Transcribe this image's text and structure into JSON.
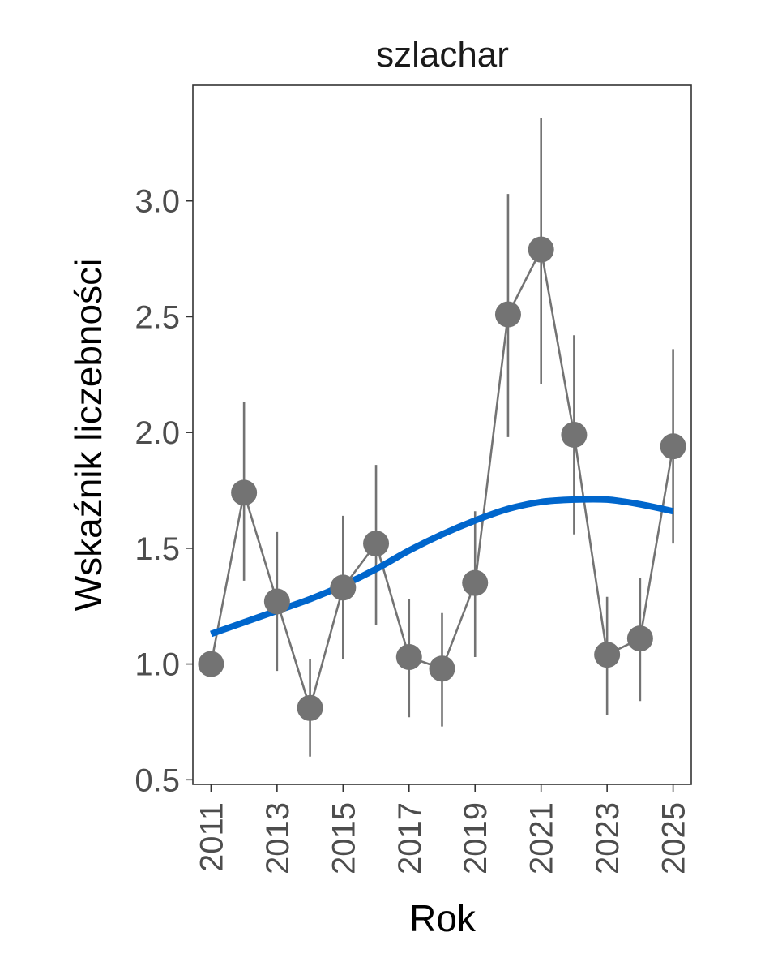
{
  "chart_data": {
    "type": "line",
    "title": "szlachar",
    "xlabel": "Rok",
    "ylabel": "Wskaźnik liczebności",
    "xlim": [
      2010.45,
      2025.55
    ],
    "ylim": [
      0.48,
      3.5
    ],
    "x_ticks": [
      2011,
      2013,
      2015,
      2017,
      2019,
      2021,
      2023,
      2025
    ],
    "x_tick_labels": [
      "2011",
      "2013",
      "2015",
      "2017",
      "2019",
      "2021",
      "2023",
      "2025"
    ],
    "y_ticks": [
      0.5,
      1.0,
      1.5,
      2.0,
      2.5,
      3.0
    ],
    "y_tick_labels": [
      "0.5",
      "1.0",
      "1.5",
      "2.0",
      "2.5",
      "3.0"
    ],
    "grid": false,
    "series": [
      {
        "kind": "points-with-errorbars",
        "color": "#737373",
        "x": [
          2011,
          2012,
          2013,
          2014,
          2015,
          2016,
          2017,
          2018,
          2019,
          2020,
          2021,
          2022,
          2023,
          2024,
          2025
        ],
        "y": [
          1.0,
          1.74,
          1.27,
          0.81,
          1.33,
          1.52,
          1.03,
          0.98,
          1.35,
          2.51,
          2.79,
          1.99,
          1.04,
          1.11,
          1.94
        ],
        "lower": [
          1.0,
          1.36,
          0.97,
          0.6,
          1.02,
          1.17,
          0.77,
          0.73,
          1.03,
          1.98,
          2.21,
          1.56,
          0.78,
          0.84,
          1.52
        ],
        "upper": [
          1.0,
          2.13,
          1.57,
          1.02,
          1.64,
          1.86,
          1.28,
          1.22,
          1.66,
          3.03,
          3.36,
          2.42,
          1.29,
          1.37,
          2.36
        ]
      },
      {
        "kind": "trend",
        "color": "#0066cc",
        "x": [
          2011,
          2012,
          2013,
          2014,
          2015,
          2016,
          2017,
          2018,
          2019,
          2020,
          2021,
          2022,
          2023,
          2024,
          2025
        ],
        "y": [
          1.13,
          1.18,
          1.23,
          1.28,
          1.34,
          1.41,
          1.49,
          1.56,
          1.62,
          1.67,
          1.7,
          1.71,
          1.71,
          1.69,
          1.66
        ]
      }
    ]
  }
}
